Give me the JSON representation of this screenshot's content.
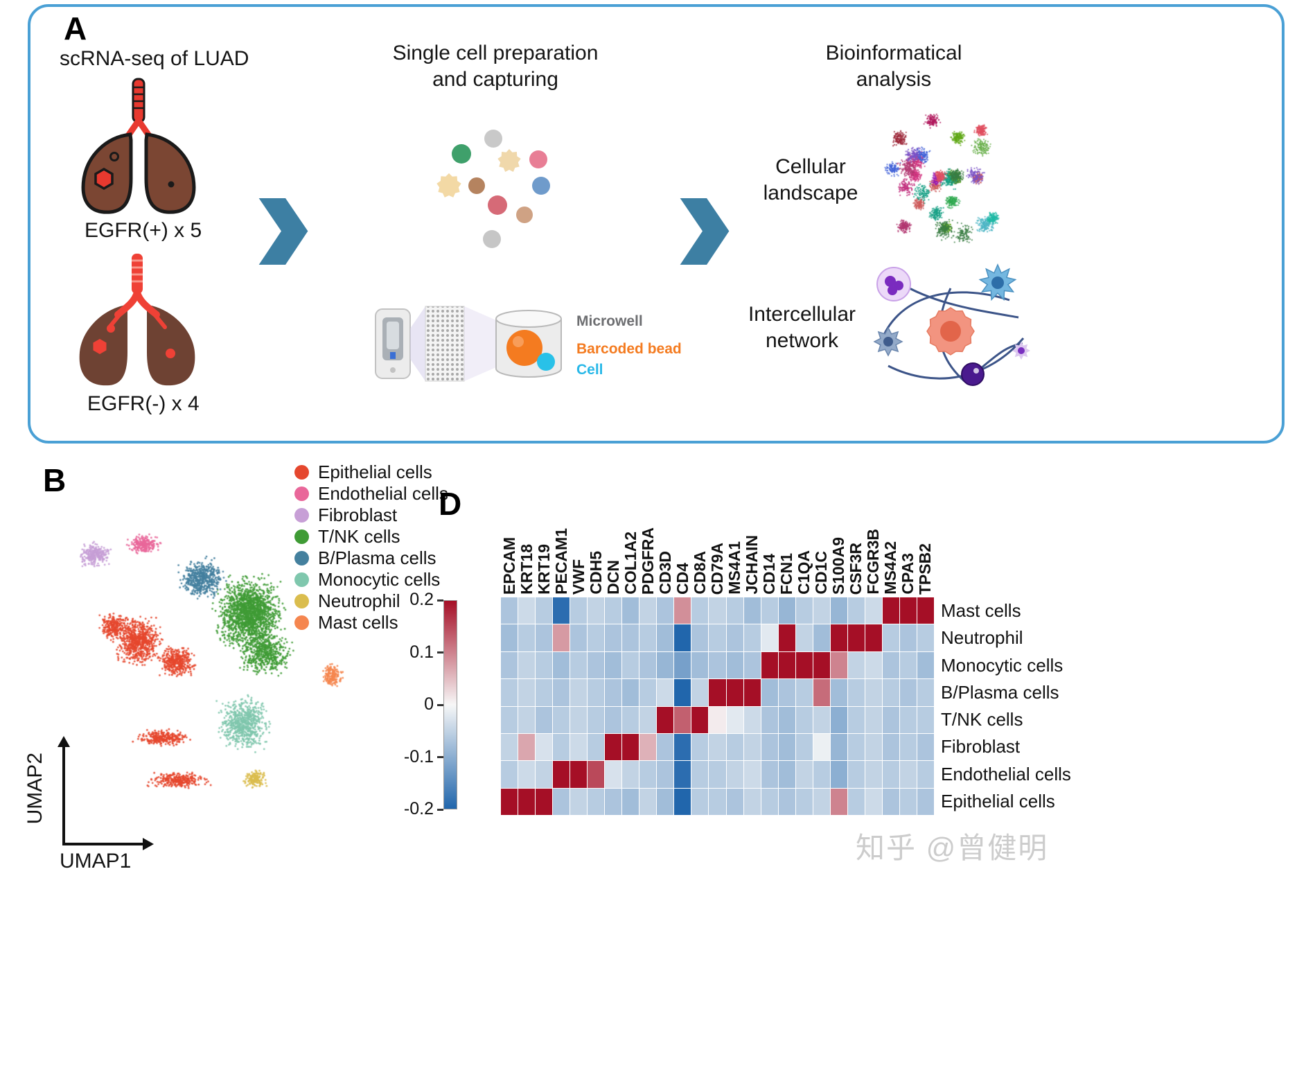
{
  "panel_a": {
    "label": "A",
    "arrow_color": "#3d7fa3",
    "left": {
      "title": "scRNA-seq of LUAD",
      "egfr_positive": "EGFR(+) x 5",
      "egfr_negative": "EGFR(-) x 4"
    },
    "middle": {
      "title": "Single cell preparation and capturing",
      "microwell_label": "Microwell",
      "bead_label": "Barcoded bead",
      "cell_label": "Cell",
      "microwell_color": "#6d6e71",
      "bead_color": "#f47b20",
      "cell_color": "#29b8e8"
    },
    "right": {
      "title": "Bioinformatical analysis",
      "cellular_landscape": "Cellular landscape",
      "intercellular_network": "Intercellular network"
    }
  },
  "panel_b": {
    "label": "B",
    "xlabel": "UMAP1",
    "ylabel": "UMAP2",
    "legend": [
      {
        "key": "epithelial",
        "label": "Epithelial cells",
        "color": "#e5472e"
      },
      {
        "key": "endothelial",
        "label": "Endothelial cells",
        "color": "#e9679a"
      },
      {
        "key": "fibroblast",
        "label": "Fibroblast",
        "color": "#c79fd6"
      },
      {
        "key": "tnk",
        "label": "T/NK cells",
        "color": "#3f9b35"
      },
      {
        "key": "bplasma",
        "label": "B/Plasma cells",
        "color": "#44809e"
      },
      {
        "key": "monocytic",
        "label": "Monocytic cells",
        "color": "#7fc7ad"
      },
      {
        "key": "neutrophil",
        "label": "Neutrophil",
        "color": "#dabd4e"
      },
      {
        "key": "mast",
        "label": "Mast cells",
        "color": "#f5864f"
      }
    ],
    "chart_data": {
      "type": "scatter",
      "clusters": [
        {
          "key": "epithelial",
          "blobs": [
            {
              "c": [
                142,
                187
              ],
              "s": [
                40,
                42
              ],
              "n": 700
            },
            {
              "c": [
                197,
                217
              ],
              "s": [
                30,
                28
              ],
              "n": 400
            },
            {
              "c": [
                107,
                167
              ],
              "s": [
                25,
                25
              ],
              "n": 260
            },
            {
              "c": [
                177,
                327
              ],
              "s": [
                45,
                14
              ],
              "n": 280
            },
            {
              "c": [
                200,
                387
              ],
              "s": [
                50,
                14
              ],
              "n": 280
            }
          ]
        },
        {
          "key": "fibroblast",
          "blobs": [
            {
              "c": [
                79,
                62
              ],
              "s": [
                27,
                20
              ],
              "n": 280
            }
          ]
        },
        {
          "key": "endothelial",
          "blobs": [
            {
              "c": [
                150,
                47
              ],
              "s": [
                27,
                17
              ],
              "n": 230
            }
          ]
        },
        {
          "key": "tnk",
          "blobs": [
            {
              "c": [
                302,
                147
              ],
              "s": [
                58,
                62
              ],
              "n": 1700
            },
            {
              "c": [
                325,
                205
              ],
              "s": [
                45,
                38
              ],
              "n": 500
            }
          ]
        },
        {
          "key": "bplasma",
          "blobs": [
            {
              "c": [
                234,
                97
              ],
              "s": [
                38,
                34
              ],
              "n": 520
            }
          ]
        },
        {
          "key": "monocytic",
          "blobs": [
            {
              "c": [
                294,
                307
              ],
              "s": [
                44,
                44
              ],
              "n": 700
            }
          ]
        },
        {
          "key": "neutrophil",
          "blobs": [
            {
              "c": [
                310,
                387
              ],
              "s": [
                20,
                16
              ],
              "n": 160
            }
          ]
        },
        {
          "key": "mast",
          "blobs": [
            {
              "c": [
                422,
                237
              ],
              "s": [
                17,
                20
              ],
              "n": 170
            }
          ]
        }
      ]
    }
  },
  "panel_d": {
    "label": "D",
    "chart_data": {
      "type": "heatmap",
      "vmin": -0.2,
      "vmax": 0.2,
      "color_positive": "#a50f26",
      "color_negative": "#2166ac",
      "colorbar_ticks": [
        "0.2",
        "0.1",
        "0",
        "-0.1",
        "-0.2"
      ],
      "genes": [
        "EPCAM",
        "KRT18",
        "KRT19",
        "PECAM1",
        "VWF",
        "CDH5",
        "DCN",
        "COL1A2",
        "PDGFRA",
        "CD3D",
        "CD4",
        "CD8A",
        "CD79A",
        "MS4A1",
        "JCHAIN",
        "CD14",
        "FCN1",
        "C1QA",
        "CD1C",
        "S100A9",
        "CSF3R",
        "FCGR3B",
        "MS4A2",
        "CPA3",
        "TPSB2"
      ],
      "cell_types": [
        "Mast cells",
        "Neutrophil",
        "Monocytic cells",
        "B/Plasma cells",
        "T/NK cells",
        "Fibroblast",
        "Endothelial cells",
        "Epithelial cells"
      ],
      "values": [
        [
          -0.07,
          -0.04,
          -0.06,
          -0.19,
          -0.06,
          -0.05,
          -0.06,
          -0.08,
          -0.05,
          -0.07,
          0.09,
          -0.06,
          -0.05,
          -0.06,
          -0.08,
          -0.06,
          -0.09,
          -0.06,
          -0.05,
          -0.09,
          -0.06,
          -0.04,
          0.2,
          0.2,
          0.2
        ],
        [
          -0.08,
          -0.06,
          -0.07,
          0.08,
          -0.07,
          -0.06,
          -0.07,
          -0.07,
          -0.06,
          -0.08,
          -0.2,
          -0.07,
          -0.06,
          -0.07,
          -0.06,
          -0.02,
          0.2,
          -0.05,
          -0.08,
          0.2,
          0.2,
          0.2,
          -0.06,
          -0.07,
          -0.06
        ],
        [
          -0.07,
          -0.05,
          -0.06,
          -0.08,
          -0.06,
          -0.07,
          -0.08,
          -0.06,
          -0.07,
          -0.09,
          -0.12,
          -0.08,
          -0.07,
          -0.08,
          -0.07,
          0.2,
          0.2,
          0.2,
          0.2,
          0.1,
          -0.05,
          -0.04,
          -0.07,
          -0.06,
          -0.08
        ],
        [
          -0.06,
          -0.05,
          -0.06,
          -0.07,
          -0.05,
          -0.06,
          -0.07,
          -0.08,
          -0.06,
          -0.04,
          -0.2,
          -0.05,
          0.2,
          0.2,
          0.2,
          -0.08,
          -0.07,
          -0.06,
          0.12,
          -0.08,
          -0.06,
          -0.05,
          -0.06,
          -0.07,
          -0.06
        ],
        [
          -0.06,
          -0.05,
          -0.07,
          -0.06,
          -0.05,
          -0.06,
          -0.07,
          -0.06,
          -0.05,
          0.2,
          0.13,
          0.2,
          0.01,
          -0.02,
          -0.04,
          -0.07,
          -0.08,
          -0.06,
          -0.05,
          -0.1,
          -0.06,
          -0.05,
          -0.07,
          -0.06,
          -0.06
        ],
        [
          -0.05,
          0.07,
          -0.03,
          -0.06,
          -0.04,
          -0.06,
          0.2,
          0.2,
          0.06,
          -0.07,
          -0.19,
          -0.06,
          -0.05,
          -0.06,
          -0.05,
          -0.07,
          -0.08,
          -0.06,
          -0.01,
          -0.09,
          -0.06,
          -0.05,
          -0.07,
          -0.06,
          -0.07
        ],
        [
          -0.06,
          -0.04,
          -0.05,
          0.2,
          0.2,
          0.15,
          -0.03,
          -0.05,
          -0.06,
          -0.07,
          -0.19,
          -0.06,
          -0.06,
          -0.05,
          -0.04,
          -0.07,
          -0.08,
          -0.05,
          -0.06,
          -0.1,
          -0.06,
          -0.05,
          -0.06,
          -0.05,
          -0.06
        ],
        [
          0.2,
          0.2,
          0.2,
          -0.07,
          -0.05,
          -0.06,
          -0.07,
          -0.08,
          -0.05,
          -0.08,
          -0.2,
          -0.06,
          -0.06,
          -0.07,
          -0.05,
          -0.06,
          -0.07,
          -0.06,
          -0.05,
          0.1,
          -0.06,
          -0.04,
          -0.07,
          -0.06,
          -0.07
        ]
      ]
    }
  },
  "watermark": {
    "text": "知乎 @曾健明"
  }
}
